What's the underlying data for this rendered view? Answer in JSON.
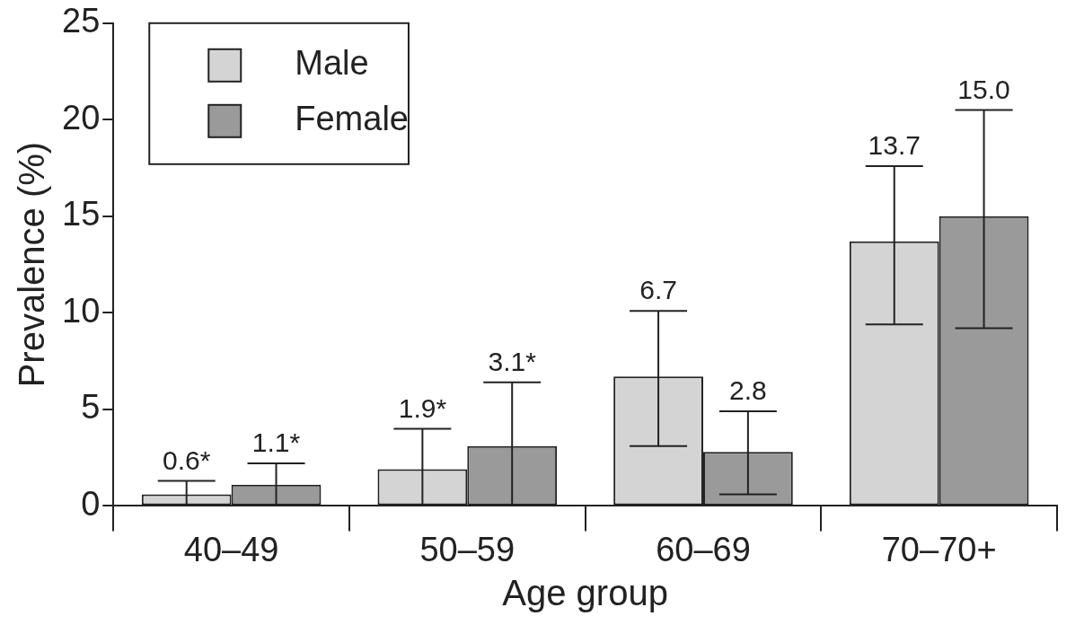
{
  "chart_data": {
    "type": "bar",
    "x_label": "Age group",
    "y_label": "Prevalence (%)",
    "categories": [
      "40–49",
      "50–59",
      "60–69",
      "70–70+"
    ],
    "series": [
      {
        "name": "Male",
        "color": "#d4d4d4",
        "values": [
          0.6,
          1.9,
          6.7,
          13.7
        ],
        "value_labels": [
          "0.6*",
          "1.9*",
          "6.7",
          "13.7"
        ],
        "error_low": [
          0,
          0,
          3.1,
          9.4
        ],
        "error_high": [
          1.3,
          4.0,
          10.1,
          17.6
        ]
      },
      {
        "name": "Female",
        "color": "#9a9a9a",
        "values": [
          1.1,
          3.1,
          2.8,
          15.0
        ],
        "value_labels": [
          "1.1*",
          "3.1*",
          "2.8",
          "15.0"
        ],
        "error_low": [
          0,
          0,
          0.6,
          9.2
        ],
        "error_high": [
          2.2,
          6.4,
          4.9,
          20.5
        ]
      }
    ],
    "ylim": [
      0,
      25
    ],
    "yticks": [
      0,
      5,
      10,
      15,
      20,
      25
    ],
    "grid": false,
    "legend": "upper left",
    "data_labels": true
  }
}
